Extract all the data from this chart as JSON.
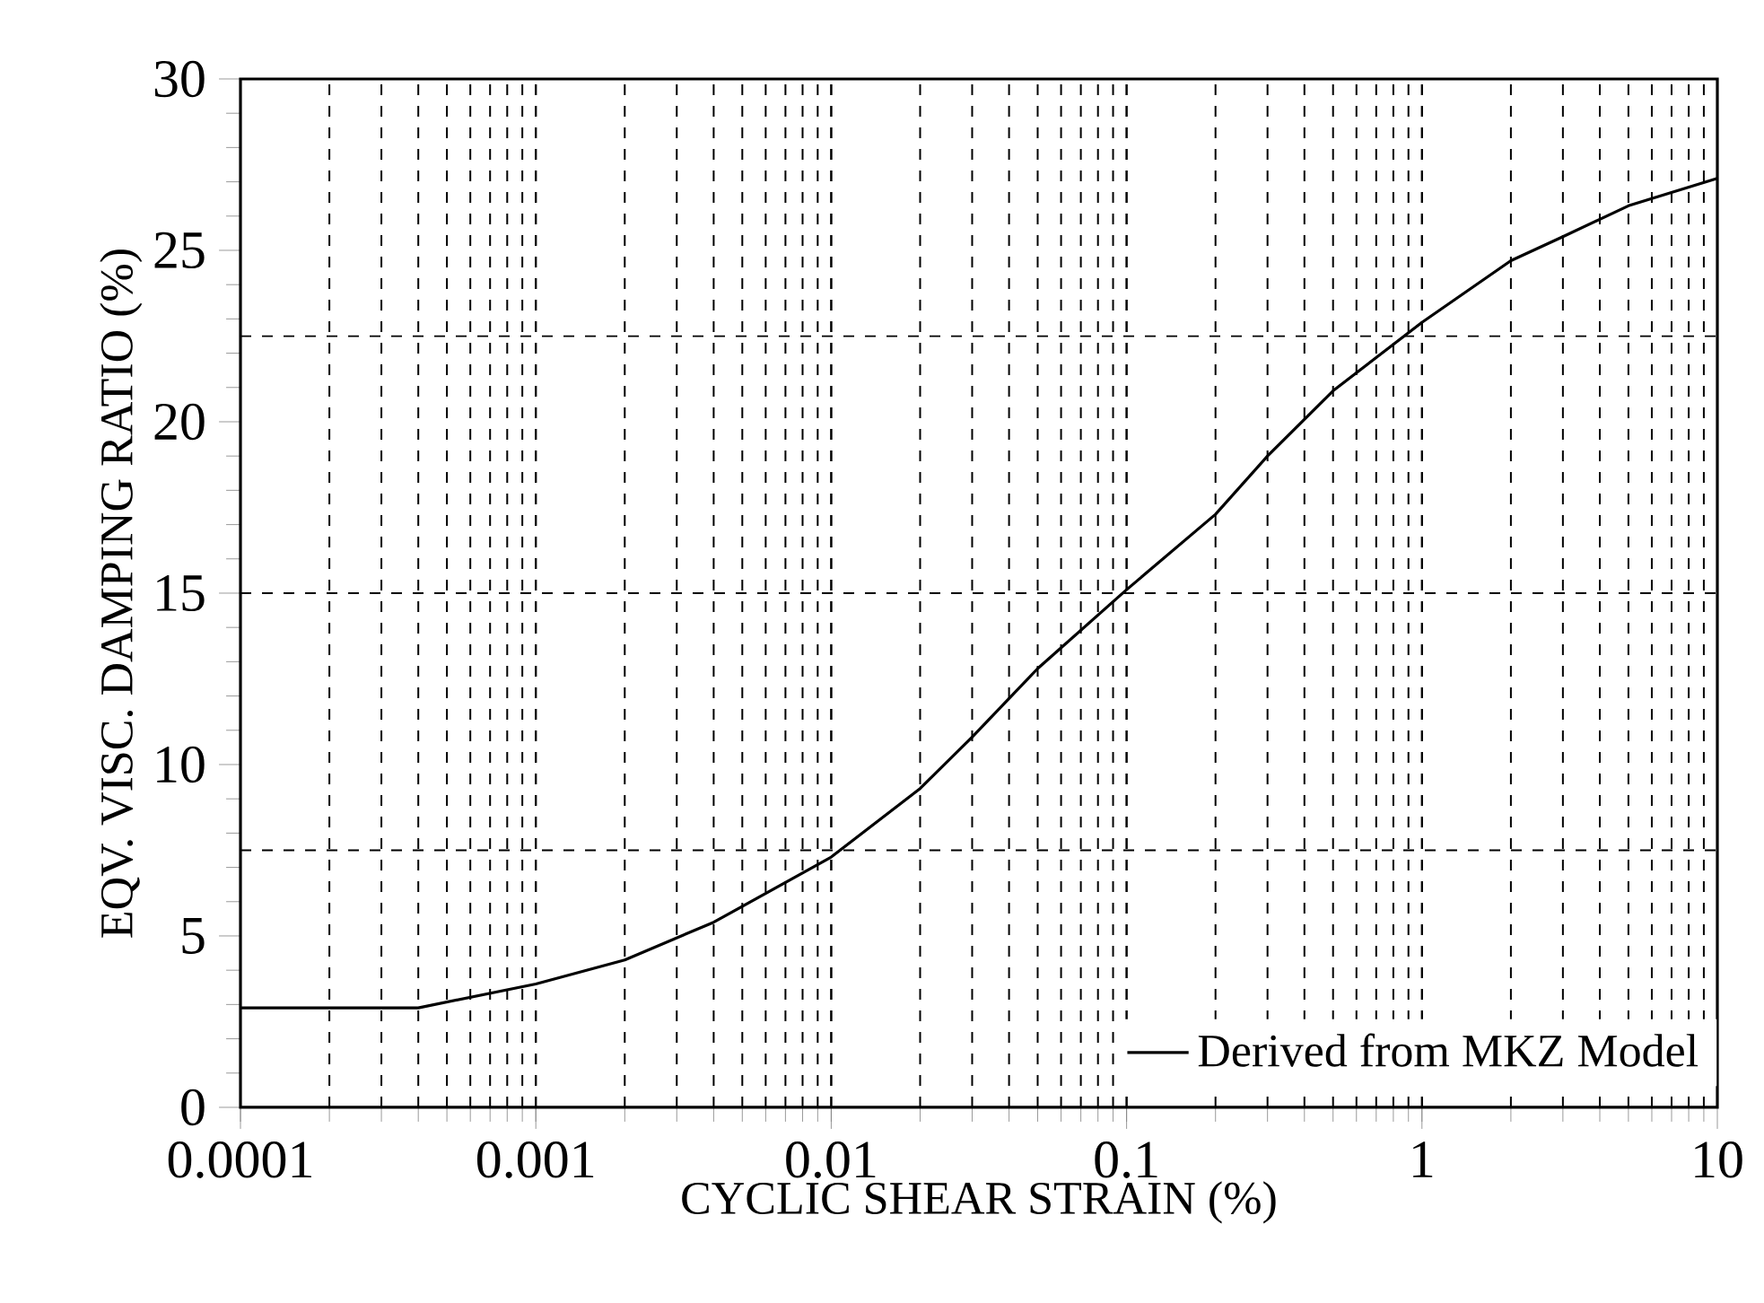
{
  "chart_data": {
    "type": "line",
    "xlabel": "CYCLIC SHEAR STRAIN (%)",
    "ylabel": "EQV. VISC. DAMPING RATIO (%)",
    "log": "x",
    "grid": "x",
    "legend": "bottom right",
    "line_style": "solid",
    "marker": "none",
    "xlim": [
      0.0001,
      10
    ],
    "xticks": [
      0.0001,
      0.001,
      0.01,
      0.1,
      1,
      10
    ],
    "ylim": [
      0,
      30
    ],
    "yticks": [
      0,
      5,
      10,
      15,
      20,
      25,
      30
    ],
    "ref_lines": [
      {
        "axis": "y",
        "value": 7.5,
        "line_style": "dashed"
      },
      {
        "axis": "y",
        "value": 15,
        "line_style": "dashed"
      },
      {
        "axis": "y",
        "value": 22.5,
        "line_style": "dashed"
      }
    ],
    "series": [
      {
        "name": "Derived from MKZ Model",
        "color": "#000000",
        "x": [
          0.0001,
          0.0004,
          0.001,
          0.002,
          0.004,
          0.01,
          0.02,
          0.03,
          0.05,
          0.1,
          0.2,
          0.3,
          0.5,
          1,
          2,
          3,
          5,
          10
        ],
        "values": [
          2.9,
          2.9,
          3.6,
          4.3,
          5.4,
          7.3,
          9.3,
          10.8,
          12.8,
          15.1,
          17.3,
          19.0,
          20.9,
          22.9,
          24.7,
          25.4,
          26.3,
          27.1
        ]
      }
    ]
  }
}
